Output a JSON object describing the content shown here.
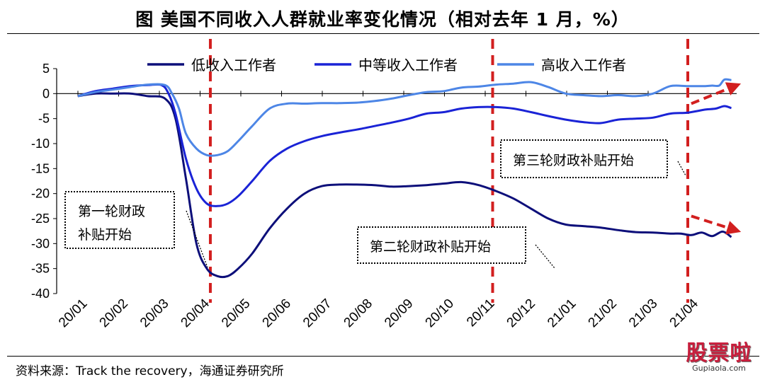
{
  "title": "图  美国不同收入人群就业率变化情况（相对去年 1 月，%）",
  "source": "资料来源：Track the recovery，海通证券研究所",
  "watermark": {
    "text": "股票啦",
    "url": "Gupiaola.com"
  },
  "colors": {
    "low": "#0d0f7a",
    "mid": "#1a23d6",
    "high": "#4d86e6",
    "marker": "#d21f1f"
  },
  "chart_data": {
    "type": "line",
    "x_tick_labels": [
      "20/01",
      "20/02",
      "20/03",
      "20/04",
      "20/05",
      "20/06",
      "20/07",
      "20/08",
      "20/09",
      "20/10",
      "20/11",
      "20/12",
      "21/01",
      "21/02",
      "21/03",
      "21/04"
    ],
    "ylim": [
      -40,
      5
    ],
    "y_ticks": [
      5,
      0,
      -5,
      -10,
      -15,
      -20,
      -25,
      -30,
      -35,
      -40
    ],
    "grid": false,
    "legend_position": "top",
    "series": [
      {
        "name": "低收入工作者",
        "color_key": "low",
        "points": [
          [
            0,
            -0.5
          ],
          [
            0.5,
            0
          ],
          [
            1,
            0
          ],
          [
            1.5,
            0
          ],
          [
            2,
            -0.5
          ],
          [
            2.5,
            -1
          ],
          [
            2.8,
            -5
          ],
          [
            3.1,
            -17
          ],
          [
            3.4,
            -30
          ],
          [
            3.7,
            -35
          ],
          [
            4,
            -36.5
          ],
          [
            4.3,
            -36.5
          ],
          [
            4.6,
            -35
          ],
          [
            5,
            -32
          ],
          [
            5.5,
            -27
          ],
          [
            6,
            -23
          ],
          [
            6.5,
            -20
          ],
          [
            7,
            -18.5
          ],
          [
            7.5,
            -18.2
          ],
          [
            8,
            -18.2
          ],
          [
            8.5,
            -18.3
          ],
          [
            9,
            -18.6
          ],
          [
            9.5,
            -18.5
          ],
          [
            10,
            -18.3
          ],
          [
            10.5,
            -18
          ],
          [
            11,
            -17.7
          ],
          [
            11.5,
            -18.3
          ],
          [
            12,
            -19.5
          ],
          [
            12.5,
            -21
          ],
          [
            13,
            -23
          ],
          [
            13.5,
            -25
          ],
          [
            14,
            -26.2
          ],
          [
            14.5,
            -26.5
          ],
          [
            15,
            -26.8
          ],
          [
            15.5,
            -27.3
          ],
          [
            16,
            -27.7
          ],
          [
            16.5,
            -27.8
          ],
          [
            17,
            -28
          ],
          [
            17.3,
            -28
          ],
          [
            17.6,
            -28.3
          ],
          [
            17.9,
            -27.8
          ],
          [
            18.2,
            -28.5
          ],
          [
            18.5,
            -27.6
          ],
          [
            18.75,
            -28.7
          ]
        ]
      },
      {
        "name": "中等收入工作者",
        "color_key": "mid",
        "points": [
          [
            0,
            -0.5
          ],
          [
            0.5,
            0.5
          ],
          [
            1,
            1
          ],
          [
            1.5,
            1.5
          ],
          [
            2,
            1.7
          ],
          [
            2.4,
            1.7
          ],
          [
            2.6,
            0
          ],
          [
            2.8,
            -4
          ],
          [
            3.1,
            -13
          ],
          [
            3.4,
            -19
          ],
          [
            3.7,
            -22
          ],
          [
            4,
            -22.5
          ],
          [
            4.3,
            -22
          ],
          [
            4.6,
            -20.5
          ],
          [
            5,
            -17.5
          ],
          [
            5.5,
            -13.5
          ],
          [
            6,
            -11
          ],
          [
            6.5,
            -9.5
          ],
          [
            7,
            -8.5
          ],
          [
            7.5,
            -7.8
          ],
          [
            8,
            -7.2
          ],
          [
            8.5,
            -6.5
          ],
          [
            9,
            -5.8
          ],
          [
            9.5,
            -5
          ],
          [
            10,
            -4
          ],
          [
            10.5,
            -3.7
          ],
          [
            11,
            -3
          ],
          [
            11.5,
            -2.7
          ],
          [
            12,
            -2.7
          ],
          [
            12.5,
            -3
          ],
          [
            13,
            -3.7
          ],
          [
            13.5,
            -4.5
          ],
          [
            14,
            -5.2
          ],
          [
            14.5,
            -5.7
          ],
          [
            15,
            -5.9
          ],
          [
            15.5,
            -5.2
          ],
          [
            16,
            -5
          ],
          [
            16.5,
            -4.8
          ],
          [
            17,
            -4
          ],
          [
            17.5,
            -3.8
          ],
          [
            18,
            -3.2
          ],
          [
            18.3,
            -3
          ],
          [
            18.55,
            -2.5
          ],
          [
            18.75,
            -2.9
          ]
        ]
      },
      {
        "name": "高收入工作者",
        "color_key": "high",
        "points": [
          [
            0,
            -0.5
          ],
          [
            0.5,
            0.3
          ],
          [
            1,
            0.8
          ],
          [
            1.5,
            1.3
          ],
          [
            2,
            1.8
          ],
          [
            2.5,
            1.7
          ],
          [
            2.7,
            0
          ],
          [
            2.9,
            -3
          ],
          [
            3.1,
            -8
          ],
          [
            3.4,
            -11
          ],
          [
            3.7,
            -12.3
          ],
          [
            4,
            -12.3
          ],
          [
            4.3,
            -11.5
          ],
          [
            4.6,
            -9.5
          ],
          [
            5,
            -6.5
          ],
          [
            5.5,
            -3
          ],
          [
            6,
            -2
          ],
          [
            6.5,
            -2
          ],
          [
            7,
            -1.9
          ],
          [
            7.5,
            -1.9
          ],
          [
            8,
            -1.8
          ],
          [
            8.5,
            -1.5
          ],
          [
            9,
            -1
          ],
          [
            9.5,
            -0.3
          ],
          [
            10,
            0.3
          ],
          [
            10.5,
            0.5
          ],
          [
            11,
            1.2
          ],
          [
            11.5,
            1.4
          ],
          [
            12,
            1.8
          ],
          [
            12.5,
            2
          ],
          [
            13,
            2.3
          ],
          [
            13.5,
            1.3
          ],
          [
            14,
            0
          ],
          [
            14.5,
            -0.3
          ],
          [
            15,
            -0.5
          ],
          [
            15.5,
            -0.3
          ],
          [
            16,
            -0.5
          ],
          [
            16.5,
            0
          ],
          [
            17,
            1.5
          ],
          [
            17.5,
            1.5
          ],
          [
            18,
            1.5
          ],
          [
            18.2,
            1.6
          ],
          [
            18.4,
            1.6
          ],
          [
            18.55,
            2.8
          ],
          [
            18.75,
            2.7
          ]
        ]
      }
    ],
    "event_markers": [
      {
        "x": 3.8,
        "label_lines": [
          "第一轮财政",
          "补贴开始"
        ]
      },
      {
        "x": 11.9,
        "label_lines": [
          "第二轮财政补贴开始"
        ]
      },
      {
        "x": 17.5,
        "label_lines": [
          "第三轮财政补贴开始"
        ]
      }
    ],
    "trend_arrows": [
      {
        "from": [
          17.6,
          -2
        ],
        "to": [
          18.95,
          1.8
        ],
        "color_key": "marker"
      },
      {
        "from": [
          17.6,
          -24.5
        ],
        "to": [
          18.95,
          -27.5
        ],
        "color_key": "marker"
      }
    ]
  }
}
